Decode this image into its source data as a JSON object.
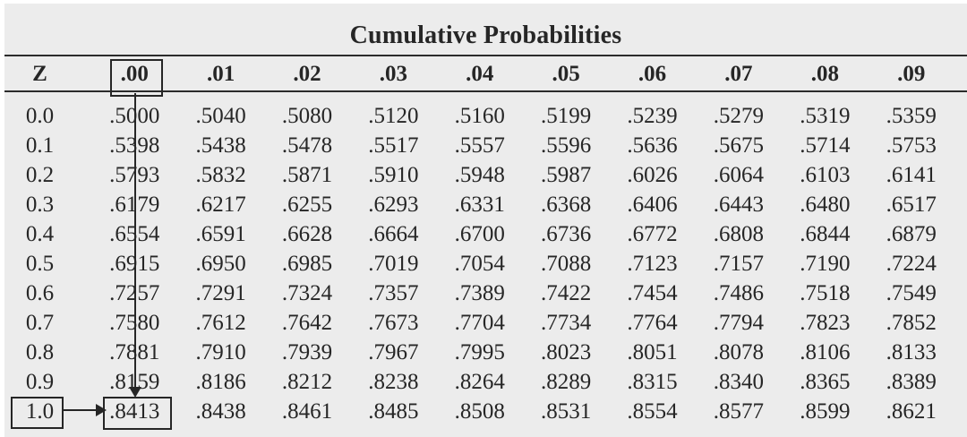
{
  "title": "Cumulative Probabilities",
  "colors": {
    "panel_background": "#ececec",
    "ink": "#262626"
  },
  "table": {
    "z_header": "Z",
    "columns": [
      ".00",
      ".01",
      ".02",
      ".03",
      ".04",
      ".05",
      ".06",
      ".07",
      ".08",
      ".09"
    ],
    "rows": [
      {
        "z": "0.0",
        "values": [
          ".5000",
          ".5040",
          ".5080",
          ".5120",
          ".5160",
          ".5199",
          ".5239",
          ".5279",
          ".5319",
          ".5359"
        ]
      },
      {
        "z": "0.1",
        "values": [
          ".5398",
          ".5438",
          ".5478",
          ".5517",
          ".5557",
          ".5596",
          ".5636",
          ".5675",
          ".5714",
          ".5753"
        ]
      },
      {
        "z": "0.2",
        "values": [
          ".5793",
          ".5832",
          ".5871",
          ".5910",
          ".5948",
          ".5987",
          ".6026",
          ".6064",
          ".6103",
          ".6141"
        ]
      },
      {
        "z": "0.3",
        "values": [
          ".6179",
          ".6217",
          ".6255",
          ".6293",
          ".6331",
          ".6368",
          ".6406",
          ".6443",
          ".6480",
          ".6517"
        ]
      },
      {
        "z": "0.4",
        "values": [
          ".6554",
          ".6591",
          ".6628",
          ".6664",
          ".6700",
          ".6736",
          ".6772",
          ".6808",
          ".6844",
          ".6879"
        ]
      },
      {
        "z": "0.5",
        "values": [
          ".6915",
          ".6950",
          ".6985",
          ".7019",
          ".7054",
          ".7088",
          ".7123",
          ".7157",
          ".7190",
          ".7224"
        ]
      },
      {
        "z": "0.6",
        "values": [
          ".7257",
          ".7291",
          ".7324",
          ".7357",
          ".7389",
          ".7422",
          ".7454",
          ".7486",
          ".7518",
          ".7549"
        ]
      },
      {
        "z": "0.7",
        "values": [
          ".7580",
          ".7612",
          ".7642",
          ".7673",
          ".7704",
          ".7734",
          ".7764",
          ".7794",
          ".7823",
          ".7852"
        ]
      },
      {
        "z": "0.8",
        "values": [
          ".7881",
          ".7910",
          ".7939",
          ".7967",
          ".7995",
          ".8023",
          ".8051",
          ".8078",
          ".8106",
          ".8133"
        ]
      },
      {
        "z": "0.9",
        "values": [
          ".8159",
          ".8186",
          ".8212",
          ".8238",
          ".8264",
          ".8289",
          ".8315",
          ".8340",
          ".8365",
          ".8389"
        ]
      },
      {
        "z": "1.0",
        "values": [
          ".8413",
          ".8438",
          ".8461",
          ".8485",
          ".8508",
          ".8531",
          ".8554",
          ".8577",
          ".8599",
          ".8621"
        ]
      }
    ],
    "highlight": {
      "boxed_column_header": ".00",
      "boxed_column_index": 0,
      "boxed_row_label": "1.0",
      "boxed_row_index": 10,
      "boxed_cell_value": ".8413",
      "annotation": "vertical arrow from .00 header down the column and horizontal arrow from 1.0 row label both point to the cell .8413"
    }
  }
}
